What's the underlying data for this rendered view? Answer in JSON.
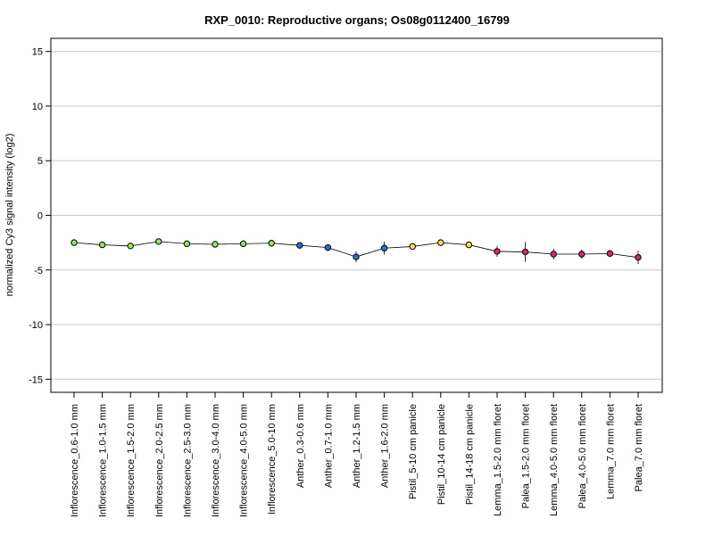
{
  "chart_data": {
    "type": "scatter",
    "title": "RXP_0010: Reproductive organs; Os08g0112400_16799",
    "xlabel": "",
    "ylabel": "normalized Cy3 signal intensity (log2)",
    "ylim": [
      -16.2,
      16.2
    ],
    "yticks": [
      15,
      10,
      5,
      0,
      -5,
      -10,
      -15
    ],
    "grid": "horizontal",
    "connected": true,
    "points": [
      {
        "label": "Inflorescence_0.6-1.0 mm",
        "value": -2.5,
        "err": 0.0,
        "color": "#99e066"
      },
      {
        "label": "Inflorescence_1.0-1.5 mm",
        "value": -2.7,
        "err": 0.0,
        "color": "#99e066"
      },
      {
        "label": "Inflorescence_1.5-2.0 mm",
        "value": -2.8,
        "err": 0.0,
        "color": "#99e066"
      },
      {
        "label": "Inflorescence_2.0-2.5 mm",
        "value": -2.4,
        "err": 0.0,
        "color": "#99e066"
      },
      {
        "label": "Inflorescence_2.5-3.0 mm",
        "value": -2.6,
        "err": 0.0,
        "color": "#99e066"
      },
      {
        "label": "Inflorescence_3.0-4.0 mm",
        "value": -2.65,
        "err": 0.0,
        "color": "#99e066"
      },
      {
        "label": "Inflorescence_4.0-5.0 mm",
        "value": -2.6,
        "err": 0.0,
        "color": "#99e066"
      },
      {
        "label": "Inflorescence_5.0-10 mm",
        "value": -2.55,
        "err": 0.0,
        "color": "#99e066"
      },
      {
        "label": "Anther_0.3-0.6 mm",
        "value": -2.75,
        "err": 0.0,
        "color": "#2e6dd6"
      },
      {
        "label": "Anther_0.7-1.0 mm",
        "value": -2.95,
        "err": 0.0,
        "color": "#2e6dd6"
      },
      {
        "label": "Anther_1.2-1.5 mm",
        "value": -3.8,
        "err": 0.5,
        "color": "#2e6dd6"
      },
      {
        "label": "Anther_1.6-2.0 mm",
        "value": -3.0,
        "err": 0.6,
        "color": "#2e6dd6"
      },
      {
        "label": "Pistil_5-10 cm panicle",
        "value": -2.85,
        "err": 0.0,
        "color": "#f2e34a"
      },
      {
        "label": "Pistil_10-14 cm panicle",
        "value": -2.5,
        "err": 0.0,
        "color": "#f2e34a"
      },
      {
        "label": "Pistil_14-18 cm panicle",
        "value": -2.7,
        "err": 0.0,
        "color": "#f2e34a"
      },
      {
        "label": "Lemma_1.5-2.0 mm floret",
        "value": -3.3,
        "err": 0.5,
        "color": "#e0237a"
      },
      {
        "label": "Palea_1.5-2.0 mm floret",
        "value": -3.35,
        "err": 0.9,
        "color": "#e0237a"
      },
      {
        "label": "Lemma_4.0-5.0 mm floret",
        "value": -3.55,
        "err": 0.5,
        "color": "#e0237a"
      },
      {
        "label": "Palea_4.0-5.0 mm floret",
        "value": -3.55,
        "err": 0.4,
        "color": "#e0237a"
      },
      {
        "label": "Lemma_7.0 mm floret",
        "value": -3.5,
        "err": 0.3,
        "color": "#e0237a"
      },
      {
        "label": "Palea_7.0 mm floret",
        "value": -3.85,
        "err": 0.6,
        "color": "#e0237a"
      }
    ]
  }
}
